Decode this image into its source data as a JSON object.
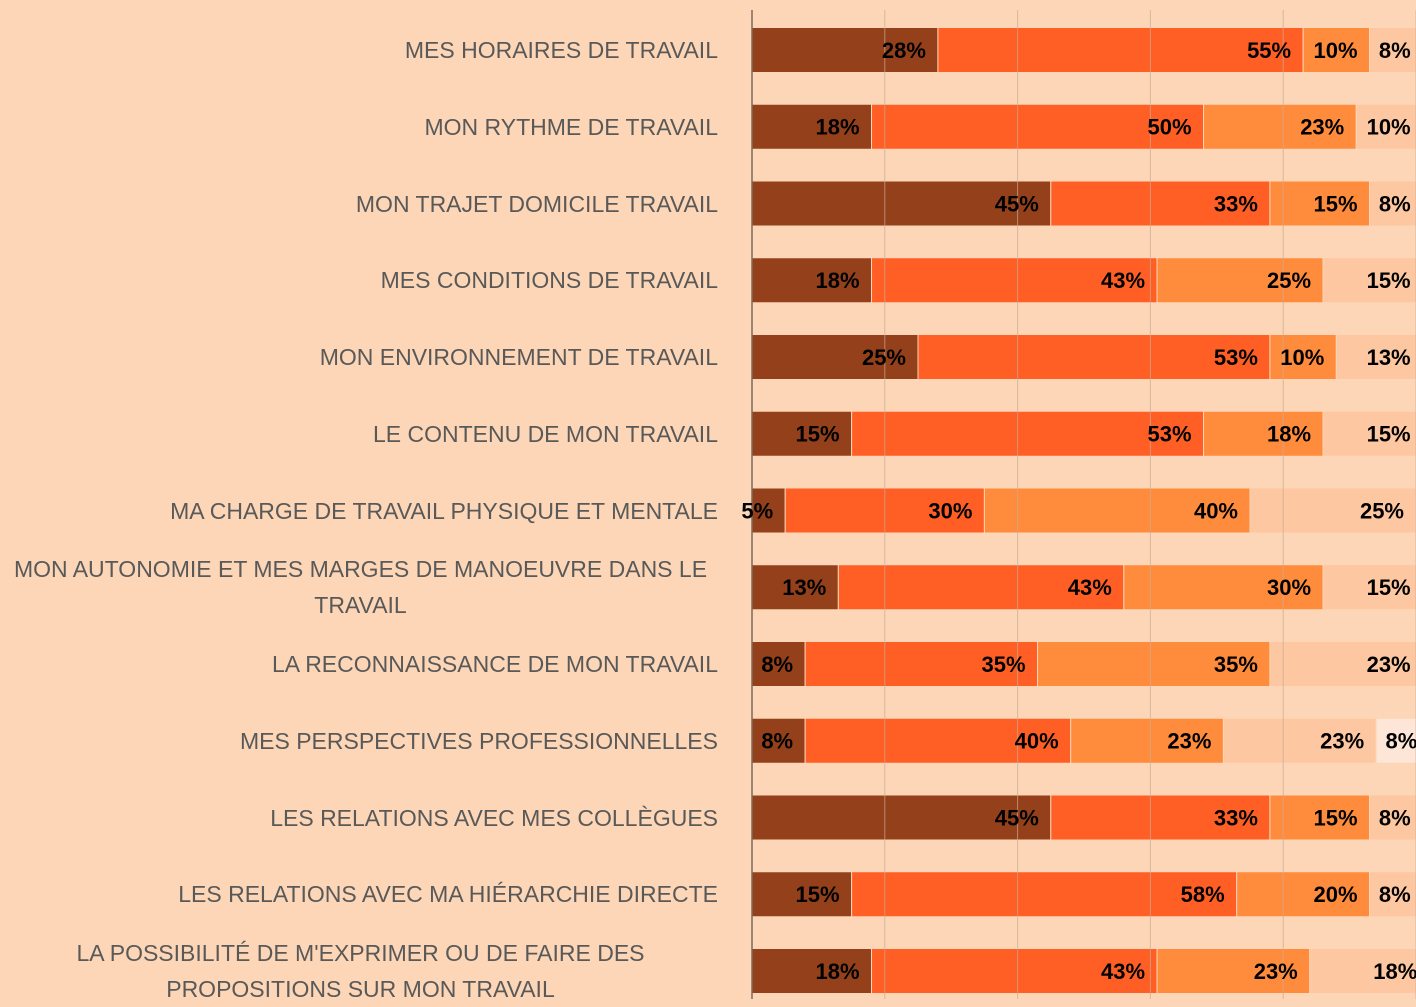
{
  "chart_data": {
    "type": "stacked-bar-horizontal",
    "categories": [
      "MES HORAIRES DE TRAVAIL",
      "MON RYTHME DE TRAVAIL",
      "MON TRAJET DOMICILE TRAVAIL",
      "MES CONDITIONS DE TRAVAIL",
      "MON ENVIRONNEMENT DE TRAVAIL",
      "LE CONTENU DE MON TRAVAIL",
      "MA CHARGE DE TRAVAIL PHYSIQUE ET MENTALE",
      "MON AUTONOMIE ET MES MARGES DE MANOEUVRE DANS LE TRAVAIL",
      "LA RECONNAISSANCE DE MON TRAVAIL",
      "MES PERSPECTIVES PROFESSIONNELLES",
      "LES RELATIONS AVEC MES COLLÈGUES",
      "LES RELATIONS AVEC MA HIÉRARCHIE DIRECTE",
      "LA POSSIBILITÉ DE M'EXPRIMER OU DE FAIRE DES PROPOSITIONS SUR MON TRAVAIL"
    ],
    "series": [
      {
        "color": "#93401b",
        "values": [
          28,
          18,
          45,
          18,
          25,
          15,
          5,
          13,
          8,
          8,
          45,
          15,
          18
        ],
        "value_labels": [
          "28%",
          "18%",
          "45%",
          "18%",
          "25%",
          "15%",
          "5%",
          "13%",
          "8%",
          "8%",
          "45%",
          "15%",
          "18%"
        ]
      },
      {
        "color": "#ff5f24",
        "values": [
          55,
          50,
          33,
          43,
          53,
          53,
          30,
          43,
          35,
          40,
          33,
          58,
          43
        ],
        "value_labels": [
          "55%",
          "50%",
          "33%",
          "43%",
          "53%",
          "53%",
          "30%",
          "43%",
          "35%",
          "40%",
          "33%",
          "58%",
          "43%"
        ]
      },
      {
        "color": "#ff8c3c",
        "values": [
          10,
          23,
          15,
          25,
          10,
          18,
          40,
          30,
          35,
          23,
          15,
          20,
          23
        ],
        "value_labels": [
          "10%",
          "23%",
          "15%",
          "25%",
          "10%",
          "18%",
          "40%",
          "30%",
          "35%",
          "23%",
          "15%",
          "20%",
          "23%"
        ]
      },
      {
        "color": "#fdc7a1",
        "values": [
          8,
          10,
          8,
          15,
          13,
          15,
          25,
          15,
          23,
          23,
          8,
          8,
          18
        ],
        "value_labels": [
          "8%",
          "10%",
          "8%",
          "15%",
          "13%",
          "15%",
          "25%",
          "15%",
          "23%",
          "23%",
          "8%",
          "8%",
          "18%"
        ]
      },
      {
        "color": "#fde6d8",
        "values": [
          null,
          null,
          null,
          null,
          null,
          null,
          null,
          null,
          null,
          8,
          null,
          null,
          null
        ],
        "value_labels": [
          null,
          null,
          null,
          null,
          null,
          null,
          null,
          null,
          null,
          "8%",
          null,
          null,
          null
        ]
      }
    ],
    "xlim": [
      0,
      100
    ],
    "xticks": [
      0,
      20,
      40,
      60,
      80,
      100
    ],
    "grid": true
  }
}
